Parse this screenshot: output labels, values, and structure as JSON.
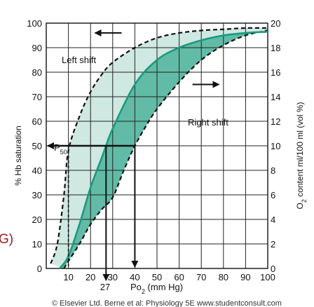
{
  "chart_data": {
    "type": "area",
    "xlabel_prefix": "Po",
    "xlabel_sub": "2",
    "xlabel_suffix": " (mm Hg)",
    "ylabel_left": "% Hb saturation",
    "ylabel_right_prefix": "O",
    "ylabel_right_sub": "2",
    "ylabel_right_suffix": " content ml/100 ml (vol %)",
    "xlim": [
      0,
      100
    ],
    "ylim_left": [
      0,
      100
    ],
    "ylim_right": [
      0,
      20
    ],
    "x_ticks": [
      "10",
      "20",
      "30",
      "40",
      "50",
      "60",
      "70",
      "80",
      "90",
      "100"
    ],
    "y_ticks_left": [
      "0",
      "10",
      "20",
      "30",
      "40",
      "50",
      "60",
      "70",
      "80",
      "90",
      "100"
    ],
    "y_ticks_right": [
      "0",
      "2",
      "4",
      "6",
      "8",
      "10",
      "12",
      "14",
      "16",
      "18",
      "20"
    ],
    "grid": true,
    "series": [
      {
        "x": [
          2,
          5,
          8,
          10,
          15,
          20,
          25,
          30,
          40,
          50,
          60,
          70,
          80,
          90,
          100
        ],
        "y": [
          2,
          10,
          30,
          48,
          62,
          72,
          79,
          84,
          90,
          94,
          96,
          97,
          97.5,
          98,
          98
        ],
        "color": "#111111"
      },
      {
        "x": [
          6,
          10,
          15,
          20,
          25,
          27,
          30,
          40,
          50,
          60,
          70,
          80,
          90,
          100
        ],
        "y": [
          0,
          5,
          18,
          33,
          45,
          50,
          57,
          75,
          85,
          90,
          93,
          95,
          96,
          96.5
        ],
        "color": "#1a9a7e"
      },
      {
        "x": [
          8,
          10,
          15,
          20,
          25,
          30,
          35,
          40,
          45,
          50,
          60,
          70,
          80,
          90,
          100
        ],
        "y": [
          0,
          3,
          10,
          18,
          24,
          29,
          40,
          50,
          58,
          65,
          76,
          85,
          91,
          95,
          97
        ],
        "color": "#111111"
      }
    ],
    "annotations": {
      "left_shift": "Left shift",
      "right_shift": "Right shift",
      "p50_prefix": "P",
      "p50_sub": "50",
      "x27": "27"
    },
    "colors": {
      "light_fill": "#cfe8e1",
      "dark_fill": "#62bba6",
      "teal_curve": "#1a9a7e",
      "edge_text": "#9b1c1c"
    },
    "edge_text": "G)",
    "credit": "© Elsevier Ltd. Berne et al: Physiology 5E www.studentconsult.com"
  }
}
